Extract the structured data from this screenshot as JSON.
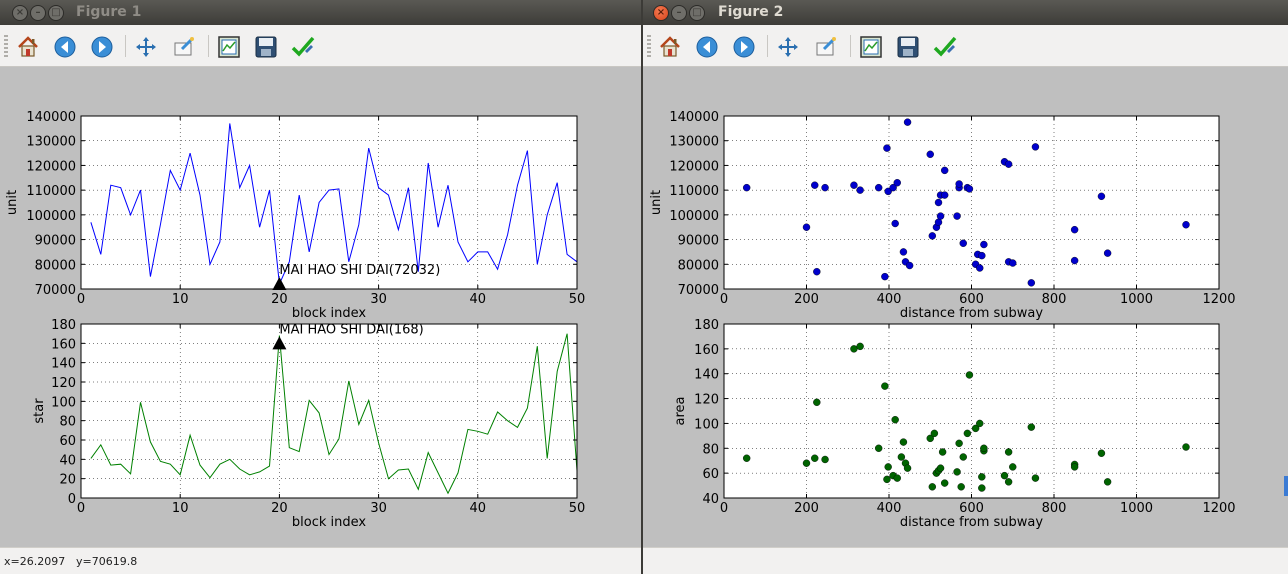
{
  "windows": [
    {
      "id": "win1",
      "title": "Figure 1",
      "active": false,
      "status": {
        "x": "x=26.2097",
        "y": "y=70619.8"
      },
      "charts": [
        {
          "type": "line",
          "xlabel": "block index",
          "ylabel": "unit",
          "xlim": [
            0,
            50
          ],
          "ylim": [
            70000,
            140000
          ],
          "xticks": [
            0,
            10,
            20,
            30,
            40,
            50
          ],
          "yticks": [
            70000,
            80000,
            90000,
            100000,
            110000,
            120000,
            130000,
            140000
          ],
          "grid": true,
          "color": "#0000ff",
          "x": [
            1,
            2,
            3,
            4,
            5,
            6,
            7,
            8,
            9,
            10,
            11,
            12,
            13,
            14,
            15,
            16,
            17,
            18,
            19,
            20,
            21,
            22,
            23,
            24,
            25,
            26,
            27,
            28,
            29,
            30,
            31,
            32,
            33,
            34,
            35,
            36,
            37,
            38,
            39,
            40,
            41,
            42,
            43,
            44,
            45,
            46,
            47,
            48,
            49,
            50
          ],
          "values": [
            97000,
            84000,
            112000,
            111000,
            100000,
            110000,
            75000,
            96000,
            118000,
            110000,
            125000,
            108000,
            80000,
            89000,
            137000,
            111000,
            120000,
            95000,
            110000,
            72000,
            81000,
            108000,
            85000,
            105000,
            110000,
            110500,
            81000,
            96000,
            127000,
            111000,
            108000,
            94000,
            111000,
            77000,
            121000,
            95000,
            112000,
            89000,
            81000,
            85000,
            85000,
            78000,
            92000,
            112000,
            126000,
            80000,
            100000,
            113000,
            84000,
            81000
          ],
          "annotation": {
            "text": "MAI HAO SHI DAI(72032)",
            "x": 20,
            "y": 72032
          }
        },
        {
          "type": "line",
          "xlabel": "block index",
          "ylabel": "star",
          "xlim": [
            0,
            50
          ],
          "ylim": [
            0,
            180
          ],
          "xticks": [
            0,
            10,
            20,
            30,
            40,
            50
          ],
          "yticks": [
            0,
            20,
            40,
            60,
            80,
            100,
            120,
            140,
            160,
            180
          ],
          "grid": true,
          "color": "#008000",
          "x": [
            1,
            2,
            3,
            4,
            5,
            6,
            7,
            8,
            9,
            10,
            11,
            12,
            13,
            14,
            15,
            16,
            17,
            18,
            19,
            20,
            21,
            22,
            23,
            24,
            25,
            26,
            27,
            28,
            29,
            30,
            31,
            32,
            33,
            34,
            35,
            36,
            37,
            38,
            39,
            40,
            41,
            42,
            43,
            44,
            45,
            46,
            47,
            48,
            49,
            50
          ],
          "values": [
            41,
            55,
            34,
            35,
            25,
            99,
            58,
            38,
            35,
            24,
            65,
            34,
            21,
            35,
            40,
            30,
            24,
            27,
            33,
            168,
            52,
            48,
            101,
            88,
            45,
            61,
            121,
            76,
            101,
            57,
            20,
            29,
            30,
            9,
            47,
            26,
            5,
            26,
            71,
            69,
            66,
            89,
            80,
            73,
            93,
            157,
            41,
            131,
            170,
            28
          ],
          "annotation": {
            "text": "MAI HAO SHI DAI(168)",
            "x": 20,
            "y": 160
          }
        }
      ]
    },
    {
      "id": "win2",
      "title": "Figure 2",
      "active": true,
      "charts": [
        {
          "type": "scatter",
          "xlabel": "distance from subway",
          "ylabel": "unit",
          "xlim": [
            0,
            1200
          ],
          "ylim": [
            70000,
            140000
          ],
          "xticks": [
            0,
            200,
            400,
            600,
            800,
            1000,
            1200
          ],
          "yticks": [
            70000,
            80000,
            90000,
            100000,
            110000,
            120000,
            130000,
            140000
          ],
          "grid": true,
          "color": "#0000cc",
          "points": [
            [
              55,
              111000
            ],
            [
              200,
              95000
            ],
            [
              220,
              112000
            ],
            [
              225,
              77000
            ],
            [
              245,
              111000
            ],
            [
              315,
              112000
            ],
            [
              330,
              110000
            ],
            [
              375,
              111000
            ],
            [
              390,
              75000
            ],
            [
              395,
              127000
            ],
            [
              398,
              109500
            ],
            [
              410,
              111000
            ],
            [
              420,
              113000
            ],
            [
              415,
              96500
            ],
            [
              435,
              85000
            ],
            [
              440,
              81000
            ],
            [
              445,
              137500
            ],
            [
              450,
              79500
            ],
            [
              500,
              124500
            ],
            [
              505,
              91500
            ],
            [
              515,
              95000
            ],
            [
              520,
              97000
            ],
            [
              520,
              105000
            ],
            [
              525,
              108000
            ],
            [
              525,
              99500
            ],
            [
              535,
              108000
            ],
            [
              535,
              118000
            ],
            [
              565,
              99500
            ],
            [
              570,
              111000
            ],
            [
              570,
              112500
            ],
            [
              580,
              88500
            ],
            [
              590,
              111000
            ],
            [
              595,
              110500
            ],
            [
              610,
              80000
            ],
            [
              615,
              84000
            ],
            [
              620,
              78500
            ],
            [
              625,
              83500
            ],
            [
              630,
              88000
            ],
            [
              680,
              121500
            ],
            [
              690,
              120500
            ],
            [
              690,
              81000
            ],
            [
              700,
              80500
            ],
            [
              745,
              72500
            ],
            [
              755,
              127500
            ],
            [
              850,
              94000
            ],
            [
              850,
              81500
            ],
            [
              915,
              107500
            ],
            [
              930,
              84500
            ],
            [
              1120,
              96000
            ]
          ]
        },
        {
          "type": "scatter",
          "xlabel": "distance from subway",
          "ylabel": "area",
          "xlim": [
            0,
            1200
          ],
          "ylim": [
            40,
            180
          ],
          "xticks": [
            0,
            200,
            400,
            600,
            800,
            1000,
            1200
          ],
          "yticks": [
            40,
            60,
            80,
            100,
            120,
            140,
            160,
            180
          ],
          "grid": true,
          "color": "#006400",
          "points": [
            [
              55,
              72
            ],
            [
              200,
              68
            ],
            [
              220,
              72
            ],
            [
              225,
              117
            ],
            [
              245,
              71
            ],
            [
              315,
              160
            ],
            [
              330,
              162
            ],
            [
              375,
              80
            ],
            [
              390,
              130
            ],
            [
              395,
              55
            ],
            [
              398,
              65
            ],
            [
              410,
              58
            ],
            [
              415,
              103
            ],
            [
              420,
              56
            ],
            [
              430,
              73
            ],
            [
              435,
              85
            ],
            [
              440,
              68
            ],
            [
              445,
              64
            ],
            [
              500,
              88
            ],
            [
              505,
              49
            ],
            [
              510,
              92
            ],
            [
              515,
              60
            ],
            [
              520,
              62
            ],
            [
              525,
              64
            ],
            [
              530,
              77
            ],
            [
              535,
              52
            ],
            [
              565,
              61
            ],
            [
              570,
              84
            ],
            [
              575,
              49
            ],
            [
              580,
              73
            ],
            [
              590,
              92
            ],
            [
              595,
              139
            ],
            [
              610,
              96
            ],
            [
              620,
              100
            ],
            [
              625,
              48
            ],
            [
              625,
              57
            ],
            [
              630,
              78
            ],
            [
              630,
              80
            ],
            [
              680,
              58
            ],
            [
              690,
              77
            ],
            [
              690,
              53
            ],
            [
              700,
              65
            ],
            [
              745,
              97
            ],
            [
              755,
              56
            ],
            [
              850,
              67
            ],
            [
              850,
              65
            ],
            [
              915,
              76
            ],
            [
              930,
              53
            ],
            [
              1120,
              81
            ]
          ]
        }
      ]
    }
  ],
  "toolbar_icons": [
    "home-icon",
    "back-arrow-icon",
    "forward-arrow-icon",
    "pan-icon",
    "zoom-icon",
    "subplots-icon",
    "save-icon",
    "edit-icon"
  ]
}
